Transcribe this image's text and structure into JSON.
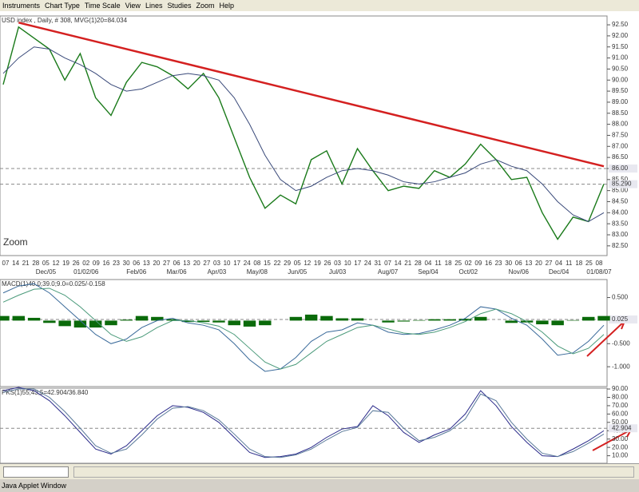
{
  "menu": [
    "Instruments",
    "Chart Type",
    "Time Scale",
    "View",
    "Lines",
    "Studies",
    "Zoom",
    "Help"
  ],
  "status": "Java Applet Window",
  "zoom_label": "Zoom",
  "chart_data": [
    {
      "type": "line",
      "title": "USD index , Daily, # 308, MVG(1)20=84.034",
      "ylim": [
        82.06,
        92.9
      ],
      "yticks": [
        {
          "value": 82.5,
          "label": "82.50"
        },
        {
          "value": 83,
          "label": "83.00"
        },
        {
          "value": 83.5,
          "label": "83.50"
        },
        {
          "value": 84,
          "label": "84.00"
        },
        {
          "value": 84.5,
          "label": "84.50"
        },
        {
          "value": 85,
          "label": "85.00"
        },
        {
          "value": 85.5,
          "label": "85.50"
        },
        {
          "value": 86,
          "label": "86.00"
        },
        {
          "value": 86.5,
          "label": "86.50"
        },
        {
          "value": 87,
          "label": "87.00"
        },
        {
          "value": 87.5,
          "label": "87.50"
        },
        {
          "value": 88,
          "label": "88.00"
        },
        {
          "value": 88.5,
          "label": "88.50"
        },
        {
          "value": 89,
          "label": "89.00"
        },
        {
          "value": 89.5,
          "label": "89.50"
        },
        {
          "value": 90,
          "label": "90.00"
        },
        {
          "value": 90.5,
          "label": "90.50"
        },
        {
          "value": 91,
          "label": "91.00"
        },
        {
          "value": 91.5,
          "label": "91.50"
        },
        {
          "value": 92,
          "label": "92.00"
        },
        {
          "value": 92.5,
          "label": "92.50"
        }
      ],
      "markers": [
        {
          "value": 86,
          "label": "86.00"
        },
        {
          "value": 85.29,
          "label": "85.290"
        }
      ],
      "trendline": {
        "color": "#d42020",
        "from": [
          1,
          92.6
        ],
        "to": [
          39,
          86.1
        ]
      },
      "days": [
        "07",
        "14",
        "21",
        "28",
        "05",
        "12",
        "19",
        "26",
        "02",
        "09",
        "16",
        "23",
        "30",
        "06",
        "13",
        "20",
        "27",
        "06",
        "13",
        "20",
        "27",
        "03",
        "10",
        "17",
        "24",
        "08",
        "15",
        "22",
        "29",
        "05",
        "12",
        "19",
        "26",
        "03",
        "10",
        "17",
        "24",
        "31",
        "07",
        "14",
        "21",
        "28",
        "04",
        "11",
        "18",
        "25",
        "02",
        "09",
        "16",
        "23",
        "30",
        "06",
        "13",
        "20",
        "27",
        "04",
        "11",
        "18",
        "25",
        "08"
      ],
      "months": [
        null,
        null,
        null,
        null,
        "Dec/05",
        null,
        null,
        null,
        "01/02/06",
        null,
        null,
        null,
        null,
        "Feb/06",
        null,
        null,
        null,
        "Mar/06",
        null,
        null,
        null,
        "Apr/03",
        null,
        null,
        null,
        "May/08",
        null,
        null,
        null,
        "Jun/05",
        null,
        null,
        null,
        "Jul/03",
        null,
        null,
        null,
        null,
        "Aug/07",
        null,
        null,
        null,
        "Sep/04",
        null,
        null,
        null,
        "Oct/02",
        null,
        null,
        null,
        null,
        "Nov/06",
        null,
        null,
        null,
        "Dec/04",
        null,
        null,
        null,
        "01/08/07"
      ],
      "series": [
        {
          "name": "USD index",
          "color": "#1a7a1a",
          "values": [
            89.8,
            92.4,
            91.9,
            91.4,
            90.0,
            91.2,
            89.2,
            88.4,
            89.9,
            90.8,
            90.6,
            90.2,
            89.6,
            90.3,
            89.2,
            87.4,
            85.6,
            84.2,
            84.8,
            84.4,
            86.4,
            86.8,
            85.3,
            86.9,
            85.9,
            85.0,
            85.2,
            85.1,
            85.9,
            85.6,
            86.2,
            87.1,
            86.4,
            85.5,
            85.6,
            84.0,
            82.8,
            83.8,
            83.6,
            85.3
          ]
        },
        {
          "name": "MVG",
          "color": "#3a4a7a",
          "values": [
            90.3,
            91.0,
            91.5,
            91.4,
            91.0,
            90.7,
            90.3,
            89.8,
            89.5,
            89.6,
            89.9,
            90.2,
            90.3,
            90.2,
            90.0,
            89.2,
            88.0,
            86.6,
            85.5,
            85.0,
            85.2,
            85.6,
            85.9,
            86.0,
            85.9,
            85.7,
            85.4,
            85.3,
            85.4,
            85.6,
            85.8,
            86.2,
            86.4,
            86.1,
            85.9,
            85.3,
            84.5,
            83.9,
            83.6,
            84.0
          ]
        }
      ]
    },
    {
      "type": "macd",
      "title": "MACD(1)40.0;39.0;9.0=0.025/-0.158",
      "ylim": [
        -1.43,
        0.89
      ],
      "yticks": [
        {
          "value": 0.5,
          "label": "0.500"
        },
        {
          "value": -0.5,
          "label": "-0.500"
        },
        {
          "value": -1,
          "label": "-1.000"
        }
      ],
      "markers": [
        {
          "value": 0.025,
          "label": "0.025"
        }
      ],
      "histogram": {
        "color": "#0a6a0a",
        "values": [
          0.1,
          0.1,
          0.06,
          -0.05,
          -0.12,
          -0.15,
          -0.15,
          -0.1,
          0.02,
          0.1,
          0.08,
          0.03,
          -0.03,
          -0.03,
          -0.04,
          -0.1,
          -0.13,
          -0.1,
          0.0,
          0.08,
          0.13,
          0.1,
          0.05,
          0.05,
          0.0,
          -0.04,
          -0.02,
          0.01,
          0.03,
          0.03,
          0.04,
          0.08,
          0.0,
          -0.05,
          -0.04,
          -0.08,
          -0.1,
          0.01,
          0.08,
          0.1
        ]
      },
      "series": [
        {
          "name": "MACD",
          "color": "#3a6a9a",
          "values": [
            0.6,
            0.75,
            0.8,
            0.6,
            0.3,
            0.0,
            -0.3,
            -0.5,
            -0.4,
            -0.15,
            0.0,
            0.05,
            -0.05,
            -0.1,
            -0.2,
            -0.5,
            -0.85,
            -1.1,
            -1.05,
            -0.8,
            -0.45,
            -0.25,
            -0.2,
            -0.05,
            -0.1,
            -0.25,
            -0.3,
            -0.28,
            -0.2,
            -0.1,
            0.05,
            0.3,
            0.25,
            0.05,
            -0.1,
            -0.4,
            -0.75,
            -0.7,
            -0.45,
            -0.1
          ]
        },
        {
          "name": "Signal",
          "color": "#4a9a7a",
          "values": [
            0.4,
            0.55,
            0.68,
            0.7,
            0.55,
            0.3,
            0.0,
            -0.3,
            -0.45,
            -0.35,
            -0.15,
            0.0,
            0.0,
            -0.05,
            -0.12,
            -0.3,
            -0.6,
            -0.9,
            -1.05,
            -0.95,
            -0.7,
            -0.45,
            -0.3,
            -0.15,
            -0.1,
            -0.18,
            -0.27,
            -0.3,
            -0.25,
            -0.15,
            -0.02,
            0.15,
            0.25,
            0.15,
            -0.02,
            -0.25,
            -0.55,
            -0.72,
            -0.6,
            -0.3
          ]
        }
      ]
    },
    {
      "type": "line",
      "title": "PKS(1)55;43;5=42.904/36.840",
      "ylim": [
        1,
        91
      ],
      "yticks": [
        {
          "value": 90,
          "label": "90.00"
        },
        {
          "value": 80,
          "label": "80.00"
        },
        {
          "value": 70,
          "label": "70.00"
        },
        {
          "value": 60,
          "label": "60.00"
        },
        {
          "value": 50,
          "label": "50.00"
        },
        {
          "value": 40,
          "label": "40.00"
        },
        {
          "value": 30,
          "label": "30.00"
        },
        {
          "value": 20,
          "label": "20.00"
        },
        {
          "value": 10,
          "label": "10.00"
        }
      ],
      "markers": [
        {
          "value": 42.904,
          "label": "42.904"
        }
      ],
      "series": [
        {
          "name": "PKS",
          "color": "#2a2a8a",
          "values": [
            88,
            92,
            88,
            76,
            58,
            38,
            18,
            12,
            22,
            40,
            58,
            70,
            68,
            62,
            50,
            32,
            14,
            8,
            9,
            12,
            20,
            32,
            42,
            45,
            70,
            58,
            38,
            26,
            35,
            42,
            60,
            88,
            70,
            45,
            26,
            10,
            9,
            18,
            28,
            40
          ]
        },
        {
          "name": "PKS signal",
          "color": "#5a7a9a",
          "values": [
            86,
            90,
            90,
            80,
            63,
            43,
            22,
            13,
            18,
            35,
            54,
            67,
            69,
            64,
            53,
            36,
            18,
            9,
            8,
            11,
            18,
            29,
            39,
            44,
            64,
            62,
            43,
            28,
            32,
            40,
            54,
            84,
            76,
            50,
            30,
            13,
            9,
            15,
            25,
            36
          ]
        }
      ]
    }
  ]
}
